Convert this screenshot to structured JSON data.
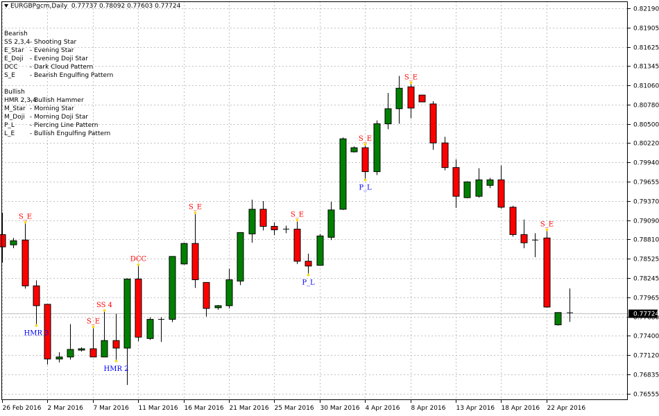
{
  "header": {
    "symbol": "EURGBPgcm,Daily",
    "ohlc": "0.77737 0.78092 0.77603 0.77724"
  },
  "legend": {
    "bearish_title": "Bearish",
    "bearish": [
      {
        "code": "SS 2,3,4",
        "desc": "- Shooting Star"
      },
      {
        "code": "E_Star",
        "desc": "- Evening Star"
      },
      {
        "code": "E_Doji",
        "desc": "- Evening Doji Star"
      },
      {
        "code": "DCC",
        "desc": "- Dark Cloud Pattern"
      },
      {
        "code": "S_E",
        "desc": "- Bearish Engulfing Pattern"
      }
    ],
    "bullish_title": "Bullish",
    "bullish": [
      {
        "code": "HMR 2,3,4",
        "desc": "- Bullish Hammer"
      },
      {
        "code": "M_Star",
        "desc": "- Morning Star"
      },
      {
        "code": "M_Doji",
        "desc": "- Morning Doji Star"
      },
      {
        "code": "P_L",
        "desc": "- Piercing Line Pattern"
      },
      {
        "code": "L_E",
        "desc": "- Bullish Engulfing Pattern"
      }
    ]
  },
  "colors": {
    "bull_body": "#008000",
    "bear_body": "#ff0000",
    "wick": "#000000",
    "grid": "#c0c0c0",
    "bearish_label": "#ff0000",
    "bullish_label": "#0000ff",
    "marker": "#ffd700",
    "current_line": "#c0c0c0"
  },
  "chart_data": {
    "type": "candlestick",
    "title": "EURGBPgcm,Daily",
    "ylim": [
      0.7646,
      0.8229
    ],
    "y_ticks": [
      "0.82190",
      "0.81905",
      "0.81625",
      "0.81345",
      "0.81060",
      "0.80780",
      "0.80500",
      "0.80220",
      "0.79940",
      "0.79655",
      "0.79370",
      "0.79090",
      "0.78810",
      "0.78525",
      "0.78245",
      "0.77965",
      "0.77680",
      "0.77400",
      "0.77120",
      "0.76835",
      "0.76555"
    ],
    "y_tick_values": [
      0.8219,
      0.81905,
      0.81625,
      0.81345,
      0.8106,
      0.8078,
      0.805,
      0.8022,
      0.7994,
      0.79655,
      0.7937,
      0.7909,
      0.7881,
      0.78525,
      0.78245,
      0.77965,
      0.7768,
      0.774,
      0.7712,
      0.76835,
      0.76555
    ],
    "x_ticks": [
      "26 Feb 2016",
      "2 Mar 2016",
      "7 Mar 2016",
      "11 Mar 2016",
      "16 Mar 2016",
      "21 Mar 2016",
      "25 Mar 2016",
      "30 Mar 2016",
      "4 Apr 2016",
      "8 Apr 2016",
      "13 Apr 2016",
      "18 Apr 2016",
      "22 Apr 2016"
    ],
    "x_tick_index": [
      0,
      4,
      8,
      12,
      16,
      20,
      24,
      28,
      32,
      36,
      40,
      44,
      48
    ],
    "current_price": "0.77724",
    "current_price_value": 0.77724,
    "candles": [
      {
        "o": 0.7888,
        "h": 0.792,
        "l": 0.7847,
        "c": 0.787
      },
      {
        "o": 0.7873,
        "h": 0.7883,
        "l": 0.7868,
        "c": 0.7879
      },
      {
        "o": 0.788,
        "h": 0.7904,
        "l": 0.7809,
        "c": 0.7813
      },
      {
        "o": 0.7813,
        "h": 0.7821,
        "l": 0.7757,
        "c": 0.7784
      },
      {
        "o": 0.7786,
        "h": 0.7786,
        "l": 0.7698,
        "c": 0.7706
      },
      {
        "o": 0.7706,
        "h": 0.7716,
        "l": 0.7701,
        "c": 0.7709
      },
      {
        "o": 0.7709,
        "h": 0.7757,
        "l": 0.7705,
        "c": 0.772
      },
      {
        "o": 0.7719,
        "h": 0.7723,
        "l": 0.7717,
        "c": 0.7721
      },
      {
        "o": 0.7721,
        "h": 0.7751,
        "l": 0.7713,
        "c": 0.7709
      },
      {
        "o": 0.7709,
        "h": 0.7775,
        "l": 0.771,
        "c": 0.7733
      },
      {
        "o": 0.7733,
        "h": 0.7772,
        "l": 0.7705,
        "c": 0.7722
      },
      {
        "o": 0.7722,
        "h": 0.7824,
        "l": 0.7668,
        "c": 0.7823
      },
      {
        "o": 0.7823,
        "h": 0.7842,
        "l": 0.7732,
        "c": 0.7738
      },
      {
        "o": 0.7736,
        "h": 0.7767,
        "l": 0.7734,
        "c": 0.7764
      },
      {
        "o": 0.7763,
        "h": 0.7767,
        "l": 0.7731,
        "c": 0.7764
      },
      {
        "o": 0.7764,
        "h": 0.7856,
        "l": 0.776,
        "c": 0.7856
      },
      {
        "o": 0.7845,
        "h": 0.7876,
        "l": 0.7844,
        "c": 0.7875
      },
      {
        "o": 0.7875,
        "h": 0.7918,
        "l": 0.781,
        "c": 0.7822
      },
      {
        "o": 0.7818,
        "h": 0.7818,
        "l": 0.7768,
        "c": 0.778
      },
      {
        "o": 0.7781,
        "h": 0.7785,
        "l": 0.7778,
        "c": 0.7784
      },
      {
        "o": 0.7784,
        "h": 0.7838,
        "l": 0.778,
        "c": 0.7822
      },
      {
        "o": 0.782,
        "h": 0.7891,
        "l": 0.7814,
        "c": 0.7891
      },
      {
        "o": 0.7889,
        "h": 0.7939,
        "l": 0.7876,
        "c": 0.7925
      },
      {
        "o": 0.7925,
        "h": 0.7937,
        "l": 0.7894,
        "c": 0.79
      },
      {
        "o": 0.79,
        "h": 0.7906,
        "l": 0.7887,
        "c": 0.7895
      },
      {
        "o": 0.7896,
        "h": 0.7901,
        "l": 0.789,
        "c": 0.7896
      },
      {
        "o": 0.7896,
        "h": 0.7907,
        "l": 0.7845,
        "c": 0.7849
      },
      {
        "o": 0.7849,
        "h": 0.786,
        "l": 0.7831,
        "c": 0.7842
      },
      {
        "o": 0.7843,
        "h": 0.7889,
        "l": 0.7843,
        "c": 0.7886
      },
      {
        "o": 0.7884,
        "h": 0.7936,
        "l": 0.788,
        "c": 0.7924
      },
      {
        "o": 0.7925,
        "h": 0.803,
        "l": 0.7924,
        "c": 0.8028
      },
      {
        "o": 0.8009,
        "h": 0.8017,
        "l": 0.8008,
        "c": 0.8015
      },
      {
        "o": 0.8015,
        "h": 0.8018,
        "l": 0.797,
        "c": 0.798
      },
      {
        "o": 0.798,
        "h": 0.8055,
        "l": 0.7975,
        "c": 0.805
      },
      {
        "o": 0.805,
        "h": 0.8095,
        "l": 0.8042,
        "c": 0.8072
      },
      {
        "o": 0.8072,
        "h": 0.812,
        "l": 0.805,
        "c": 0.8102
      },
      {
        "o": 0.8104,
        "h": 0.8108,
        "l": 0.8058,
        "c": 0.8073
      },
      {
        "o": 0.8092,
        "h": 0.8092,
        "l": 0.8082,
        "c": 0.8082
      },
      {
        "o": 0.8079,
        "h": 0.8083,
        "l": 0.8012,
        "c": 0.8022
      },
      {
        "o": 0.8022,
        "h": 0.8031,
        "l": 0.7982,
        "c": 0.7986
      },
      {
        "o": 0.7986,
        "h": 0.7998,
        "l": 0.7927,
        "c": 0.7944
      },
      {
        "o": 0.7942,
        "h": 0.7966,
        "l": 0.7941,
        "c": 0.7965
      },
      {
        "o": 0.7944,
        "h": 0.7985,
        "l": 0.7942,
        "c": 0.7968
      },
      {
        "o": 0.796,
        "h": 0.7971,
        "l": 0.7956,
        "c": 0.7968
      },
      {
        "o": 0.7968,
        "h": 0.7989,
        "l": 0.7926,
        "c": 0.7928
      },
      {
        "o": 0.7928,
        "h": 0.793,
        "l": 0.7885,
        "c": 0.7888
      },
      {
        "o": 0.7888,
        "h": 0.791,
        "l": 0.7868,
        "c": 0.7876
      },
      {
        "o": 0.788,
        "h": 0.789,
        "l": 0.7855,
        "c": 0.788
      },
      {
        "o": 0.7883,
        "h": 0.7893,
        "l": 0.7781,
        "c": 0.7782
      },
      {
        "o": 0.7756,
        "h": 0.7774,
        "l": 0.7755,
        "c": 0.7774
      },
      {
        "o": 0.77737,
        "h": 0.78092,
        "l": 0.77603,
        "c": 0.77724
      }
    ],
    "annotations": [
      {
        "i": 2,
        "text": "S_E",
        "kind": "bearish",
        "pos": "above"
      },
      {
        "i": 3,
        "text": "HMR 3",
        "kind": "bullish",
        "pos": "below"
      },
      {
        "i": 8,
        "text": "S_E",
        "kind": "bearish",
        "pos": "above"
      },
      {
        "i": 9,
        "text": "SS 4",
        "kind": "bearish",
        "pos": "above"
      },
      {
        "i": 10,
        "text": "HMR 2",
        "kind": "bullish",
        "pos": "below"
      },
      {
        "i": 12,
        "text": "DCC",
        "kind": "bearish",
        "pos": "above"
      },
      {
        "i": 17,
        "text": "S_E",
        "kind": "bearish",
        "pos": "above"
      },
      {
        "i": 26,
        "text": "S_E",
        "kind": "bearish",
        "pos": "above"
      },
      {
        "i": 27,
        "text": "P_L",
        "kind": "bullish",
        "pos": "below"
      },
      {
        "i": 32,
        "text": "S_E",
        "kind": "bearish",
        "pos": "above"
      },
      {
        "i": 32,
        "text": "P_L",
        "kind": "bullish",
        "pos": "below"
      },
      {
        "i": 36,
        "text": "S_E",
        "kind": "bearish",
        "pos": "above"
      },
      {
        "i": 48,
        "text": "S_E",
        "kind": "bearish",
        "pos": "above"
      }
    ]
  }
}
